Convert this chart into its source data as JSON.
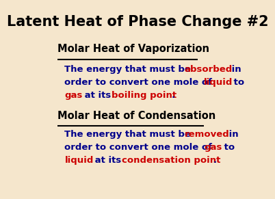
{
  "title": "Latent Heat of Phase Change #2",
  "bg_color": "#f5e6cc",
  "title_color": "#000000",
  "title_fontsize": 15,
  "heading1": "Molar Heat of Vaporization",
  "heading2": "Molar Heat of Condensation",
  "heading_color": "#000000",
  "heading_fontsize": 10.5,
  "body_fontsize": 9.5,
  "vap_line1_parts": [
    {
      "text": "The energy that must be ",
      "color": "#00008B"
    },
    {
      "text": "absorbed",
      "color": "#CC0000"
    },
    {
      "text": " in",
      "color": "#00008B"
    }
  ],
  "vap_line2_parts": [
    {
      "text": "order to convert one mole of ",
      "color": "#00008B"
    },
    {
      "text": "liquid",
      "color": "#CC0000"
    },
    {
      "text": " to",
      "color": "#00008B"
    }
  ],
  "vap_line3_parts": [
    {
      "text": "gas",
      "color": "#CC0000"
    },
    {
      "text": " at its ",
      "color": "#00008B"
    },
    {
      "text": "boiling point",
      "color": "#CC0000"
    },
    {
      "text": ".",
      "color": "#00008B"
    }
  ],
  "con_line1_parts": [
    {
      "text": "The energy that must be ",
      "color": "#00008B"
    },
    {
      "text": "removed",
      "color": "#CC0000"
    },
    {
      "text": " in",
      "color": "#00008B"
    }
  ],
  "con_line2_parts": [
    {
      "text": "order to convert one mole of ",
      "color": "#00008B"
    },
    {
      "text": "gas",
      "color": "#CC0000"
    },
    {
      "text": " to",
      "color": "#00008B"
    }
  ],
  "con_line3_parts": [
    {
      "text": "liquid",
      "color": "#CC0000"
    },
    {
      "text": " at its ",
      "color": "#00008B"
    },
    {
      "text": "condensation point",
      "color": "#CC0000"
    },
    {
      "text": ".",
      "color": "#00008B"
    }
  ]
}
